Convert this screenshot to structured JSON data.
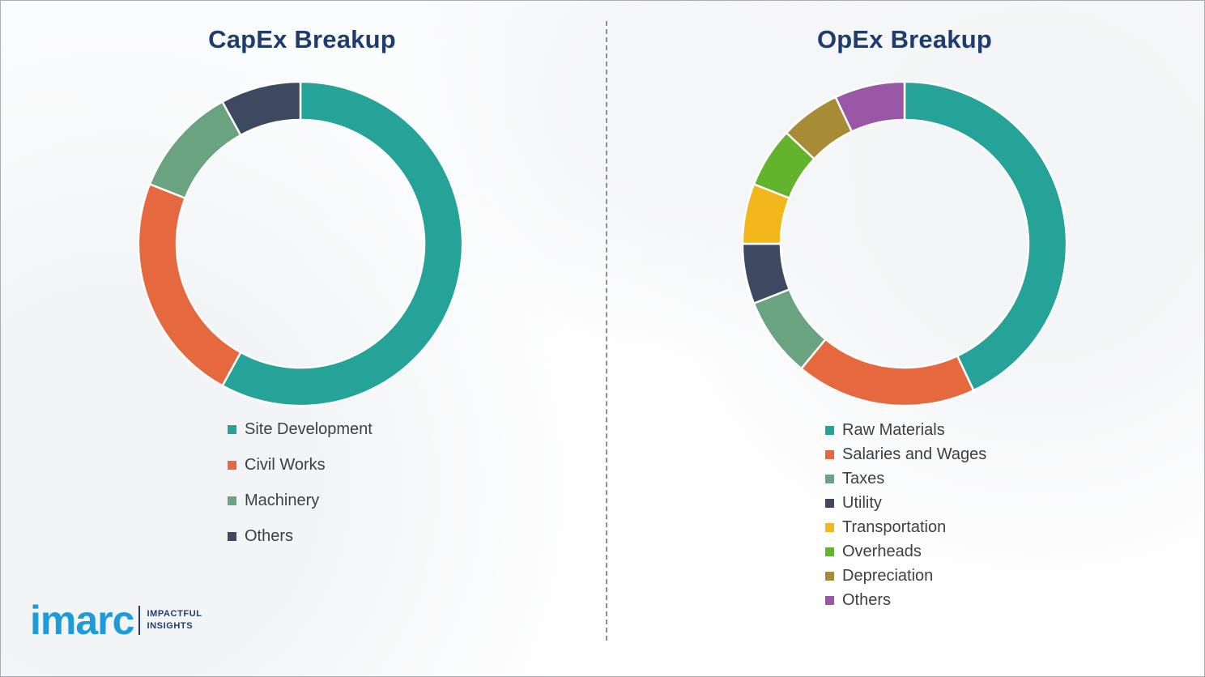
{
  "chart_data": [
    {
      "type": "pie",
      "subtype": "donut",
      "title": "CapEx Breakup",
      "categories": [
        "Site Development",
        "Civil Works",
        "Machinery",
        "Others"
      ],
      "values": [
        58,
        23,
        11,
        8
      ],
      "colors": [
        "#26a399",
        "#e6683f",
        "#69a37f",
        "#3d4861"
      ],
      "legend_position": "bottom-left",
      "start_angle_deg": -90,
      "direction": "clockwise"
    },
    {
      "type": "pie",
      "subtype": "donut",
      "title": "OpEx Breakup",
      "categories": [
        "Raw Materials",
        "Salaries and Wages",
        "Taxes",
        "Utility",
        "Transportation",
        "Overheads",
        "Depreciation",
        "Others"
      ],
      "values": [
        43,
        18,
        8,
        6,
        6,
        6,
        6,
        7
      ],
      "colors": [
        "#26a399",
        "#e6683f",
        "#69a37f",
        "#3d4861",
        "#f3b71b",
        "#64b32c",
        "#a78b35",
        "#9a57a5"
      ],
      "legend_position": "bottom-left",
      "start_angle_deg": -90,
      "direction": "clockwise"
    }
  ],
  "logo": {
    "brand": "imarc",
    "tagline_line1": "IMPACTFUL",
    "tagline_line2": "INSIGHTS",
    "brand_color": "#1e9bdb",
    "tagline_color": "#1e3c6e"
  },
  "title_color": "#1e3c6e"
}
